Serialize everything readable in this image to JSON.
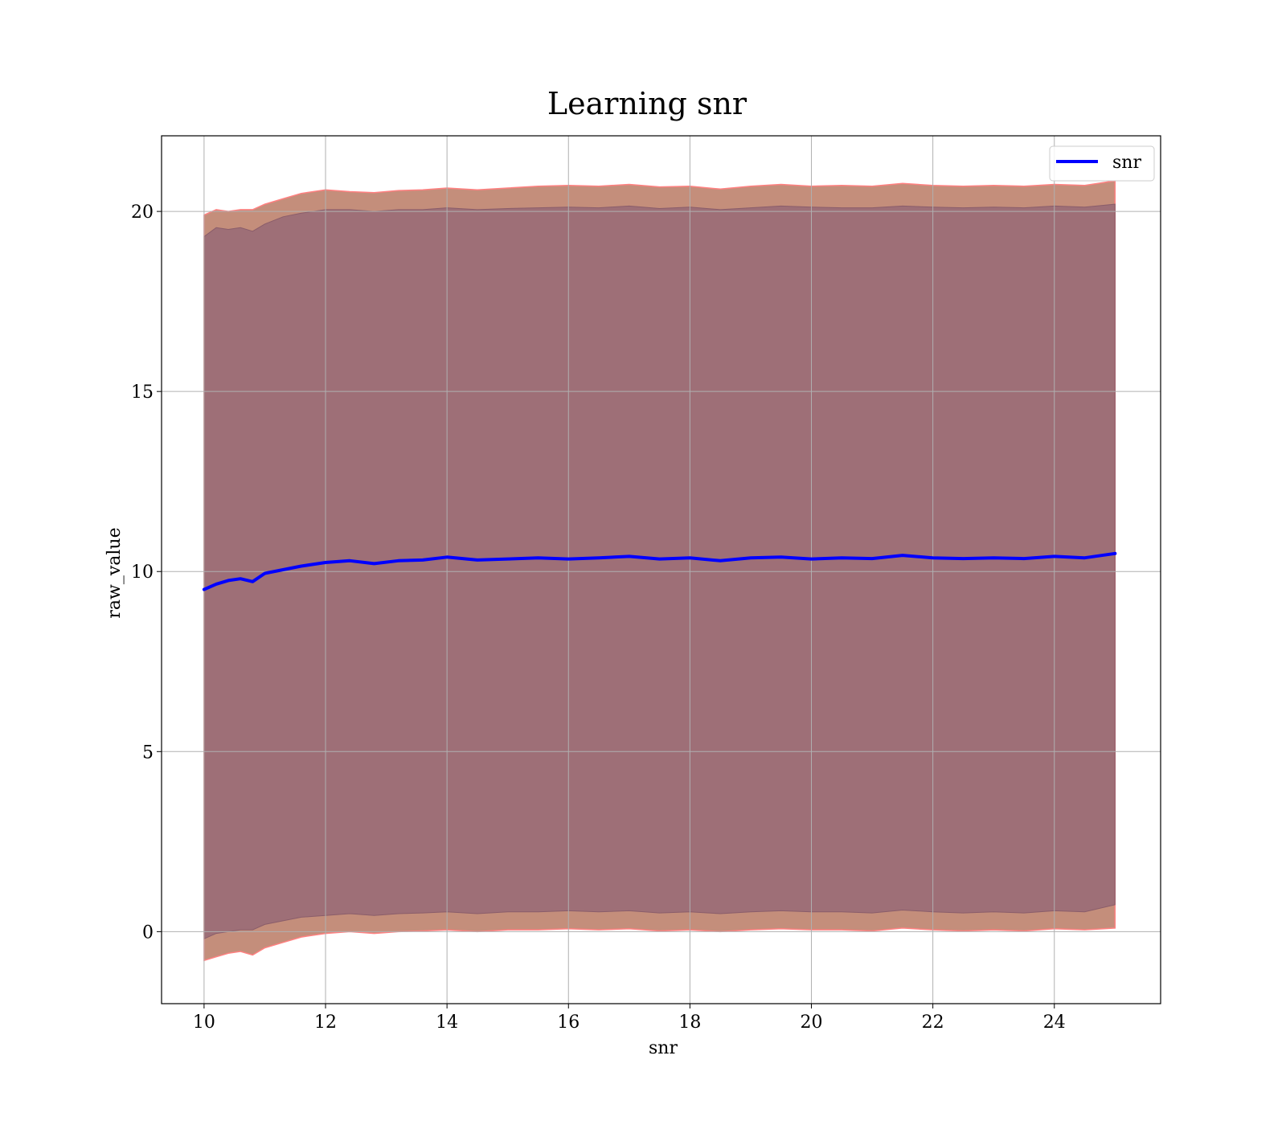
{
  "chart_data": {
    "type": "line",
    "title": "Learning snr",
    "xlabel": "snr",
    "ylabel": "raw_value",
    "xlim": [
      9.3,
      25.75
    ],
    "ylim": [
      -2.0,
      22.1
    ],
    "xticks": [
      10,
      12,
      14,
      16,
      18,
      20,
      22,
      24
    ],
    "yticks": [
      0,
      5,
      10,
      15,
      20
    ],
    "grid": true,
    "legend": {
      "placement": "top-right",
      "entries": [
        "snr"
      ]
    },
    "colors": {
      "line": "#0000ff",
      "outer_band": "#c48e7b",
      "outer_band_edge": "#ff8080",
      "inner_band": "#9e6f77",
      "grid": "#b0b0b0"
    },
    "series": [
      {
        "name": "snr",
        "x": [
          10.0,
          10.2,
          10.4,
          10.6,
          10.8,
          11.0,
          11.3,
          11.6,
          12.0,
          12.4,
          12.8,
          13.2,
          13.6,
          14.0,
          14.5,
          15.0,
          15.5,
          16.0,
          16.5,
          17.0,
          17.5,
          18.0,
          18.5,
          19.0,
          19.5,
          20.0,
          20.5,
          21.0,
          21.5,
          22.0,
          22.5,
          23.0,
          23.5,
          24.0,
          24.5,
          25.0
        ],
        "y": [
          9.5,
          9.65,
          9.75,
          9.8,
          9.72,
          9.95,
          10.05,
          10.15,
          10.25,
          10.3,
          10.22,
          10.3,
          10.32,
          10.4,
          10.32,
          10.35,
          10.38,
          10.35,
          10.38,
          10.42,
          10.35,
          10.38,
          10.3,
          10.38,
          10.4,
          10.35,
          10.38,
          10.36,
          10.45,
          10.38,
          10.36,
          10.38,
          10.36,
          10.42,
          10.38,
          10.5
        ]
      }
    ],
    "bands": {
      "outer_upper": [
        19.9,
        20.05,
        20.0,
        20.05,
        20.05,
        20.2,
        20.35,
        20.5,
        20.6,
        20.55,
        20.52,
        20.58,
        20.6,
        20.65,
        20.6,
        20.65,
        20.7,
        20.72,
        20.7,
        20.75,
        20.68,
        20.7,
        20.62,
        20.7,
        20.75,
        20.7,
        20.72,
        20.7,
        20.78,
        20.72,
        20.7,
        20.72,
        20.7,
        20.75,
        20.72,
        20.85
      ],
      "inner_upper": [
        19.3,
        19.55,
        19.5,
        19.55,
        19.45,
        19.65,
        19.85,
        19.95,
        20.05,
        20.05,
        20.0,
        20.05,
        20.05,
        20.1,
        20.05,
        20.08,
        20.1,
        20.12,
        20.1,
        20.15,
        20.08,
        20.12,
        20.05,
        20.1,
        20.15,
        20.12,
        20.1,
        20.1,
        20.15,
        20.12,
        20.1,
        20.12,
        20.1,
        20.15,
        20.12,
        20.2
      ],
      "inner_lower": [
        -0.2,
        -0.05,
        0.0,
        0.05,
        0.05,
        0.2,
        0.3,
        0.4,
        0.45,
        0.5,
        0.45,
        0.5,
        0.52,
        0.55,
        0.5,
        0.55,
        0.55,
        0.58,
        0.55,
        0.58,
        0.52,
        0.55,
        0.5,
        0.55,
        0.58,
        0.55,
        0.55,
        0.52,
        0.6,
        0.55,
        0.52,
        0.55,
        0.52,
        0.58,
        0.55,
        0.75
      ],
      "outer_lower": [
        -0.8,
        -0.7,
        -0.6,
        -0.55,
        -0.65,
        -0.45,
        -0.3,
        -0.15,
        -0.05,
        0.0,
        -0.05,
        0.0,
        0.02,
        0.05,
        0.0,
        0.05,
        0.05,
        0.08,
        0.05,
        0.08,
        0.02,
        0.05,
        0.0,
        0.05,
        0.08,
        0.05,
        0.05,
        0.02,
        0.1,
        0.05,
        0.02,
        0.05,
        0.02,
        0.08,
        0.05,
        0.1
      ]
    }
  }
}
